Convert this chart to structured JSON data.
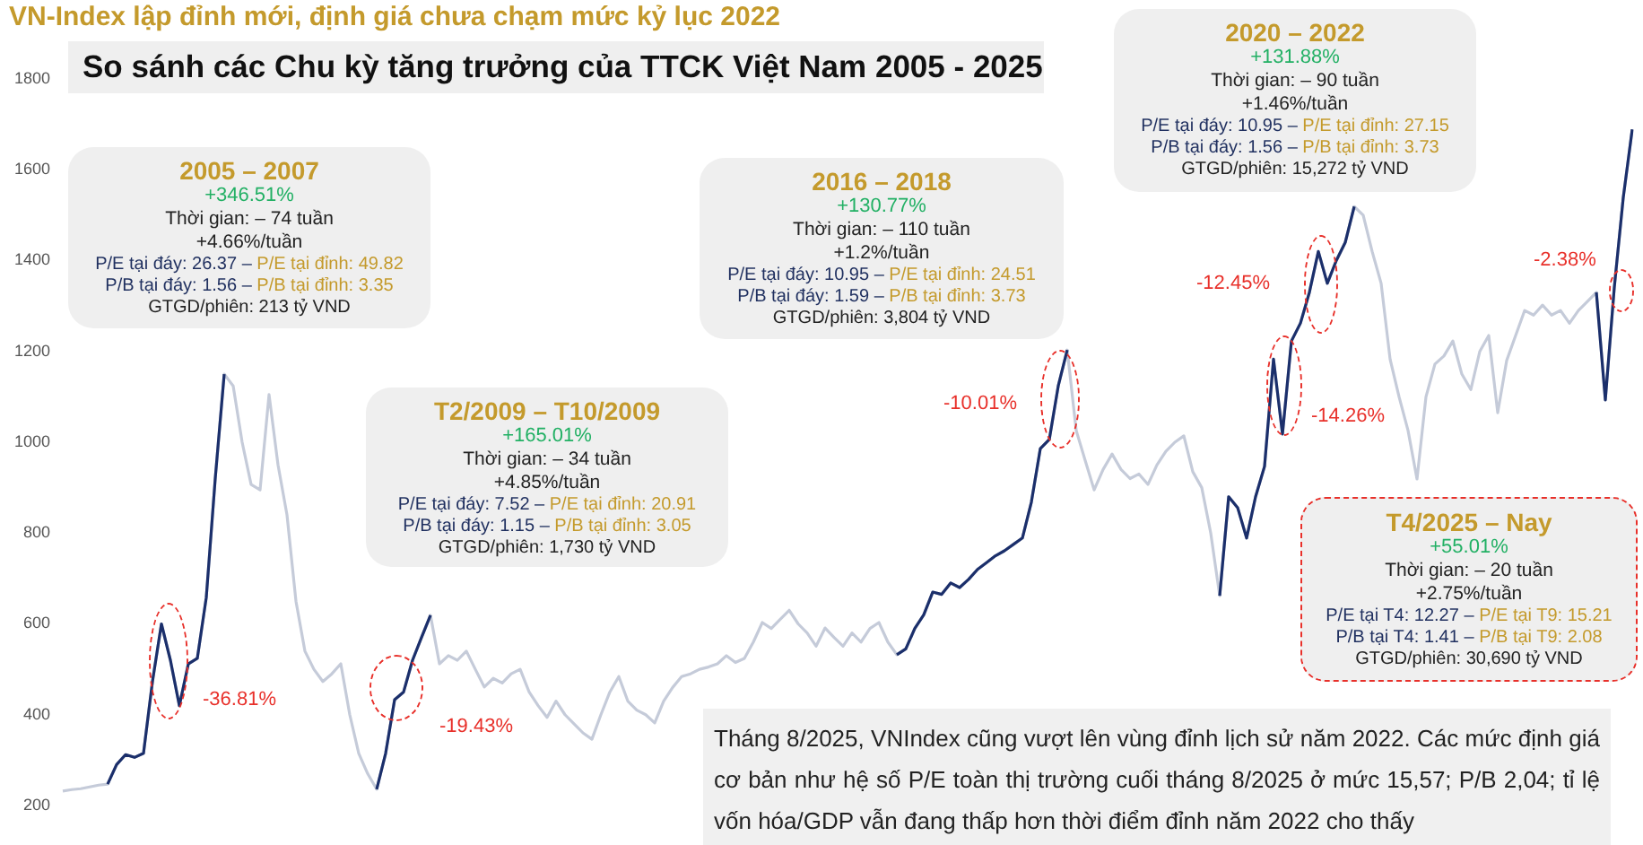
{
  "chart_data": {
    "type": "line",
    "title": "VN-Index lập đỉnh mới, định giá chưa chạm mức kỷ lục 2022",
    "subtitle": "So sánh các Chu kỳ tăng trưởng của TTCK Việt Nam 2005 - 2025",
    "categories": [
      null,
      null,
      null,
      null,
      null,
      null,
      null,
      null,
      null,
      null,
      null,
      null,
      null,
      null,
      null,
      null,
      null,
      null,
      null,
      null,
      null,
      null,
      null,
      null,
      null,
      null,
      null,
      null,
      null,
      null,
      null,
      null,
      null,
      null,
      null,
      null,
      null,
      null,
      null,
      null,
      null,
      null,
      null,
      null,
      null,
      null,
      null,
      null,
      null,
      null,
      null,
      null,
      null,
      null,
      null,
      null,
      null,
      null,
      null,
      null,
      null,
      null,
      null,
      null,
      null,
      null,
      null,
      null,
      null,
      null,
      null,
      null,
      null,
      null,
      null,
      null,
      null,
      null,
      null,
      null,
      null,
      null,
      null,
      null,
      null,
      null,
      null,
      null,
      null,
      null,
      null,
      null,
      null,
      null,
      null,
      null,
      null,
      null,
      null,
      null,
      null,
      null,
      null,
      null,
      null,
      null,
      null,
      null,
      null,
      null,
      null,
      null,
      null,
      null,
      null,
      null,
      null,
      null,
      null,
      null,
      null,
      null,
      null,
      null,
      null,
      null,
      null,
      null,
      null,
      null,
      null,
      null,
      null,
      null,
      null,
      null,
      null,
      null,
      null,
      null,
      null,
      null,
      null,
      null,
      null,
      null,
      null,
      null,
      null,
      null,
      null,
      null,
      null,
      null,
      null,
      null,
      null,
      null,
      null,
      null,
      null,
      null,
      null,
      null,
      null,
      null,
      null,
      null,
      null,
      null,
      null,
      null,
      null,
      null,
      null,
      null
    ],
    "series": [
      {
        "color": "#c5cbd9",
        "values": [
          232,
          235,
          237,
          241,
          245,
          247,
          290,
          312,
          306,
          315,
          473,
          600,
          520,
          420,
          512,
          524,
          658,
          920,
          1150,
          1124,
          1000,
          907,
          895,
          1105,
          950,
          840,
          650,
          540,
          500,
          473,
          490,
          512,
          400,
          315,
          270,
          236,
          315,
          433,
          450,
          520,
          570,
          619,
          512,
          530,
          520,
          540,
          500,
          461,
          480,
          470,
          490,
          500,
          450,
          420,
          394,
          430,
          400,
          380,
          360,
          346,
          400,
          450,
          484,
          430,
          410,
          400,
          382,
          430,
          460,
          484,
          490,
          500,
          505,
          512,
          530,
          515,
          524,
          560,
          603,
          590,
          610,
          630,
          600,
          580,
          551,
          591,
          570,
          551,
          580,
          560,
          590,
          603,
          560,
          532,
          545,
          590,
          620,
          670,
          665,
          690,
          680,
          698,
          720,
          735,
          750,
          761,
          775,
          789,
          868,
          986,
          1006,
          1124,
          1203,
          1026,
          960,
          895,
          940,
          974,
          940,
          920,
          930,
          907,
          950,
          980,
          1000,
          1014,
          935,
          900,
          800,
          662,
          880,
          856,
          789,
          880,
          947,
          1183,
          1018,
          1223,
          1262,
          1330,
          1420,
          1350,
          1400,
          1440,
          1519,
          1500,
          1420,
          1350,
          1183,
          1100,
          1026,
          919,
          1100,
          1172,
          1190,
          1223,
          1150,
          1116,
          1200,
          1235,
          1065,
          1180,
          1235,
          1290,
          1280,
          1302,
          1280,
          1290,
          1262,
          1290,
          1310,
          1330,
          1093,
          1341,
          1539,
          1689
        ]
      },
      {
        "color": "#1b2f6b",
        "values": [
          null,
          null,
          null,
          null,
          null,
          247,
          290,
          312,
          306,
          315,
          473,
          600,
          520,
          420,
          512,
          524,
          658,
          920,
          1150,
          null,
          null,
          null,
          null,
          null,
          null,
          null,
          null,
          null,
          null,
          null,
          null,
          null,
          null,
          null,
          null,
          236,
          315,
          433,
          450,
          520,
          570,
          619,
          null,
          null,
          null,
          null,
          null,
          null,
          null,
          null,
          null,
          null,
          null,
          null,
          null,
          null,
          null,
          null,
          null,
          null,
          null,
          null,
          null,
          null,
          null,
          null,
          null,
          null,
          null,
          null,
          null,
          null,
          null,
          null,
          null,
          null,
          null,
          null,
          null,
          null,
          null,
          null,
          null,
          null,
          null,
          null,
          null,
          null,
          null,
          null,
          null,
          null,
          null,
          532,
          545,
          590,
          620,
          670,
          665,
          690,
          680,
          698,
          720,
          735,
          750,
          761,
          775,
          789,
          868,
          986,
          1006,
          1124,
          1203,
          null,
          null,
          null,
          null,
          null,
          null,
          null,
          null,
          null,
          null,
          null,
          null,
          null,
          null,
          null,
          null,
          662,
          880,
          856,
          789,
          880,
          947,
          1183,
          1018,
          1223,
          1262,
          1330,
          1420,
          1350,
          1400,
          1440,
          1519,
          null,
          null,
          null,
          null,
          null,
          null,
          null,
          null,
          null,
          null,
          null,
          null,
          null,
          null,
          null,
          null,
          null,
          null,
          null,
          null,
          null,
          null,
          null,
          null,
          null,
          null,
          1330,
          1093,
          1341,
          1539,
          1689
        ]
      }
    ],
    "ylim": [
      200,
      1800
    ],
    "yticks": [
      200,
      400,
      600,
      800,
      1000,
      1200,
      1400,
      1600,
      1800
    ],
    "grid": false,
    "legend": false,
    "tick_labels": "y",
    "marker": "none",
    "line_style": "solid",
    "annotations": [
      "2005 – 2007",
      "+346.51%",
      "Thời gian: – 74 tuần",
      "+4.66%/tuần",
      "P/E tại đáy: 26.37 –",
      "P/E tại đỉnh: 49.82",
      "P/B tại đáy: 1.56 –",
      "P/B tại đỉnh: 3.35",
      "GTGD/phiên: 213 tỷ VND",
      "T2/2009 – T10/2009",
      "+165.01%",
      "Thời gian: – 34 tuần",
      "+4.85%/tuần",
      "P/E tại đáy: 7.52 –",
      "P/E tại đỉnh: 20.91",
      "P/B tại đáy: 1.15 –",
      "P/B tại đỉnh: 3.05",
      "GTGD/phiên: 1,730 tỷ VND",
      "2016 – 2018",
      "+130.77%",
      "Thời gian: – 110 tuần",
      "+1.2%/tuần",
      "P/E tại đáy: 10.95 –",
      "P/E tại đỉnh: 24.51",
      "P/B tại đáy: 1.59 –",
      "P/B tại đỉnh: 3.73",
      "GTGD/phiên: 3,804 tỷ VND",
      "2020 – 2022",
      "+131.88%",
      "Thời gian: – 90 tuần",
      "+1.46%/tuần",
      "P/E tại đáy: 10.95 –",
      "P/E tại đỉnh: 27.15",
      "P/B tại đáy: 1.56 –",
      "P/B tại đỉnh: 3.73",
      "GTGD/phiên: 15,272 tỷ VND",
      "T4/2025 – Nay",
      "+55.01%",
      "Thời gian: – 20 tuần",
      "+2.75%/tuần",
      "P/E tại T4: 12.27 –",
      "P/E tại T9: 15.21",
      "P/B tại T4: 1.41 –",
      "P/B tại T9: 2.08",
      "GTGD/phiên: 30,690 tỷ VND",
      "-36.81%",
      "-19.43%",
      "-10.01%",
      "-12.45%",
      "-14.26%",
      "-2.38%",
      "Tháng 8/2025, VNIndex cũng vượt lên vùng đỉnh lịch sử năm 2022. Các mức định giá cơ bản như hệ số P/E toàn thị trường cuối tháng 8/2025 ở mức 15,57; P/B 2,04; tỉ lệ vốn hóa/GDP vẫn đang thấp hơn thời điểm đỉnh năm 2022 cho thấy"
    ]
  }
}
